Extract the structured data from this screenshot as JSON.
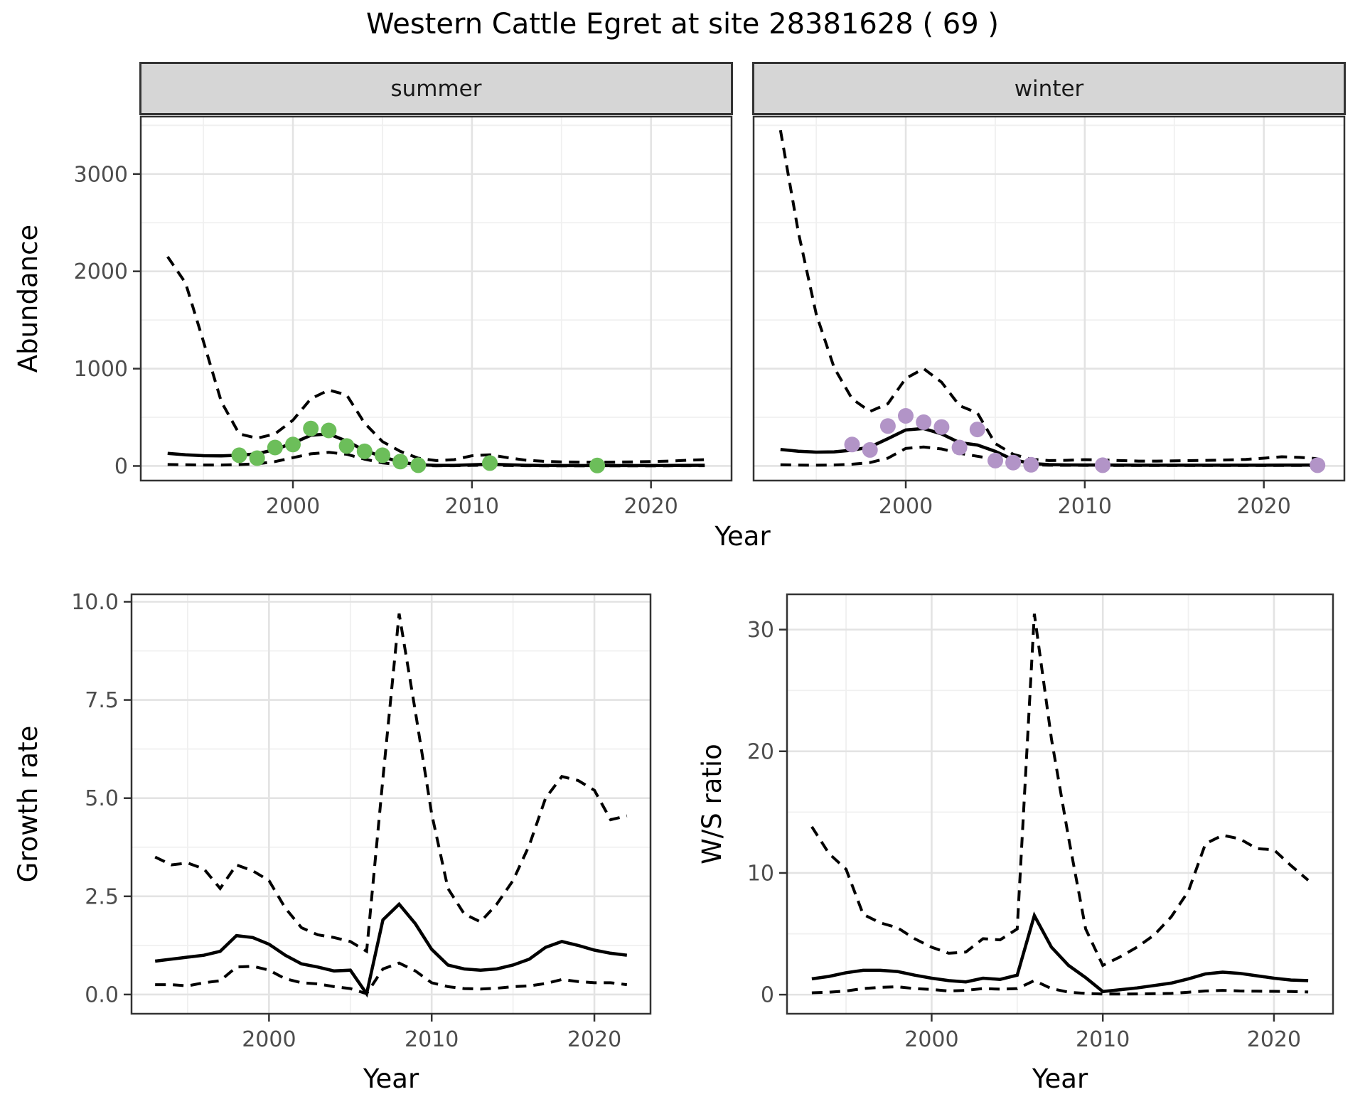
{
  "figure": {
    "title": "Western Cattle Egret at site 28381628 ( 69 )",
    "species": "Western Cattle Egret",
    "site_id": "28381628",
    "site_index": "69"
  },
  "style": {
    "summer_point_color": "#6CBE5A",
    "winter_point_color": "#B294C7",
    "line_color": "#000000",
    "strip_fill": "#D6D6D6",
    "panel_border": "#333333",
    "grid_major": "#E3E3E3",
    "grid_minor": "#F0F0F0",
    "tick_label_color": "#4D4D4D"
  },
  "chart_data": [
    {
      "id": "abundance-summer",
      "type": "line",
      "facet_label": "summer",
      "ylabel": "Abundance",
      "xlabel": "Year",
      "xlim": [
        1991.5,
        2024.5
      ],
      "ylim": [
        -150,
        3590
      ],
      "xticks": {
        "values": [
          2000,
          2010,
          2020
        ],
        "labels": [
          "2000",
          "2010",
          "2020"
        ]
      },
      "yticks": {
        "values": [
          0,
          1000,
          2000,
          3000
        ],
        "labels": [
          "0",
          "1000",
          "2000",
          "3000"
        ]
      },
      "xminor": [
        1995,
        2005,
        2015
      ],
      "yminor": [
        500,
        1500,
        2500,
        3500
      ],
      "series": [
        {
          "name": "upper-95ci",
          "style": "dashed",
          "years": [
            1993,
            1994,
            1995,
            1996,
            1997,
            1998,
            1999,
            2000,
            2001,
            2002,
            2003,
            2004,
            2005,
            2006,
            2007,
            2008,
            2009,
            2010,
            2011,
            2012,
            2013,
            2014,
            2015,
            2016,
            2017,
            2018,
            2019,
            2020,
            2021,
            2022,
            2023
          ],
          "values": [
            2150,
            1880,
            1280,
            660,
            330,
            285,
            330,
            470,
            690,
            780,
            730,
            440,
            250,
            150,
            80,
            55,
            65,
            105,
            115,
            85,
            60,
            48,
            42,
            40,
            38,
            40,
            42,
            45,
            50,
            58,
            65
          ]
        },
        {
          "name": "lower-95ci",
          "style": "dashed",
          "years": [
            1993,
            1994,
            1995,
            1996,
            1997,
            1998,
            1999,
            2000,
            2001,
            2002,
            2003,
            2004,
            2005,
            2006,
            2007,
            2008,
            2009,
            2010,
            2011,
            2012,
            2013,
            2014,
            2015,
            2016,
            2017,
            2018,
            2019,
            2020,
            2021,
            2022,
            2023
          ],
          "values": [
            15,
            12,
            10,
            10,
            14,
            22,
            45,
            85,
            125,
            140,
            120,
            70,
            32,
            12,
            4,
            2,
            3,
            6,
            8,
            5,
            3,
            2,
            2,
            2,
            2,
            2,
            2,
            2,
            2,
            3,
            3
          ]
        },
        {
          "name": "mean-fit",
          "style": "solid",
          "years": [
            1993,
            1994,
            1995,
            1996,
            1997,
            1998,
            1999,
            2000,
            2001,
            2002,
            2003,
            2004,
            2005,
            2006,
            2007,
            2008,
            2009,
            2010,
            2011,
            2012,
            2013,
            2014,
            2015,
            2016,
            2017,
            2018,
            2019,
            2020,
            2021,
            2022,
            2023
          ],
          "values": [
            130,
            115,
            106,
            104,
            110,
            125,
            170,
            235,
            315,
            330,
            255,
            160,
            95,
            40,
            12,
            6,
            6,
            12,
            18,
            12,
            7,
            5,
            4,
            4,
            4,
            4,
            4,
            4,
            5,
            6,
            7
          ]
        }
      ],
      "points": {
        "name": "observed-counts-summer",
        "color": "#6CBE5A",
        "years": [
          1997,
          1998,
          1999,
          2000,
          2001,
          2002,
          2003,
          2004,
          2005,
          2006,
          2007,
          2011,
          2017
        ],
        "values": [
          110,
          80,
          190,
          220,
          385,
          365,
          205,
          150,
          110,
          45,
          8,
          30,
          5
        ]
      }
    },
    {
      "id": "abundance-winter",
      "type": "line",
      "facet_label": "winter",
      "ylabel": "Abundance",
      "xlabel": "Year",
      "xlim": [
        1991.5,
        2024.5
      ],
      "ylim": [
        -150,
        3590
      ],
      "xticks": {
        "values": [
          2000,
          2010,
          2020
        ],
        "labels": [
          "2000",
          "2010",
          "2020"
        ]
      },
      "yticks": {
        "values": [
          0,
          1000,
          2000,
          3000
        ],
        "labels": [
          "0",
          "1000",
          "2000",
          "3000"
        ]
      },
      "xminor": [
        1995,
        2005,
        2015
      ],
      "yminor": [
        500,
        1500,
        2500,
        3500
      ],
      "series": [
        {
          "name": "upper-95ci",
          "style": "dashed",
          "years": [
            1993,
            1994,
            1995,
            1996,
            1997,
            1998,
            1999,
            2000,
            2001,
            2002,
            2003,
            2004,
            2005,
            2006,
            2007,
            2008,
            2009,
            2010,
            2011,
            2012,
            2013,
            2014,
            2015,
            2016,
            2017,
            2018,
            2019,
            2020,
            2021,
            2022,
            2023
          ],
          "values": [
            3450,
            2400,
            1560,
            1010,
            690,
            560,
            640,
            900,
            1000,
            860,
            620,
            545,
            230,
            120,
            70,
            55,
            58,
            65,
            62,
            55,
            50,
            50,
            52,
            55,
            58,
            62,
            68,
            80,
            95,
            88,
            75
          ]
        },
        {
          "name": "lower-95ci",
          "style": "dashed",
          "years": [
            1993,
            1994,
            1995,
            1996,
            1997,
            1998,
            1999,
            2000,
            2001,
            2002,
            2003,
            2004,
            2005,
            2006,
            2007,
            2008,
            2009,
            2010,
            2011,
            2012,
            2013,
            2014,
            2015,
            2016,
            2017,
            2018,
            2019,
            2020,
            2021,
            2022,
            2023
          ],
          "values": [
            12,
            9,
            8,
            10,
            18,
            35,
            80,
            180,
            195,
            175,
            130,
            100,
            70,
            35,
            12,
            8,
            7,
            6,
            6,
            5,
            5,
            5,
            5,
            5,
            5,
            5,
            5,
            5,
            5,
            5,
            5
          ]
        },
        {
          "name": "mean-fit",
          "style": "solid",
          "years": [
            1993,
            1994,
            1995,
            1996,
            1997,
            1998,
            1999,
            2000,
            2001,
            2002,
            2003,
            2004,
            2005,
            2006,
            2007,
            2008,
            2009,
            2010,
            2011,
            2012,
            2013,
            2014,
            2015,
            2016,
            2017,
            2018,
            2019,
            2020,
            2021,
            2022,
            2023
          ],
          "values": [
            170,
            152,
            142,
            145,
            162,
            195,
            280,
            370,
            385,
            330,
            240,
            215,
            150,
            65,
            25,
            14,
            11,
            10,
            10,
            9,
            8,
            8,
            8,
            8,
            8,
            8,
            8,
            8,
            9,
            9,
            10
          ]
        }
      ],
      "points": {
        "name": "observed-counts-winter",
        "color": "#B294C7",
        "years": [
          1997,
          1998,
          1999,
          2000,
          2001,
          2002,
          2003,
          2004,
          2005,
          2006,
          2007,
          2011,
          2023
        ],
        "values": [
          220,
          165,
          410,
          515,
          450,
          400,
          190,
          375,
          55,
          35,
          12,
          8,
          8
        ]
      }
    },
    {
      "id": "growth-rate",
      "type": "line",
      "facet_label": "",
      "ylabel": "Growth rate",
      "xlabel": "Year",
      "xlim": [
        1991.55,
        2023.45
      ],
      "ylim": [
        -0.49,
        10.19
      ],
      "xticks": {
        "values": [
          2000,
          2010,
          2020
        ],
        "labels": [
          "2000",
          "2010",
          "2020"
        ]
      },
      "yticks": {
        "values": [
          0.0,
          2.5,
          5.0,
          7.5,
          10.0
        ],
        "labels": [
          "0.0",
          "2.5",
          "5.0",
          "7.5",
          "10.0"
        ]
      },
      "xminor": [
        1995,
        2005,
        2015
      ],
      "yminor": [
        1.25,
        3.75,
        6.25,
        8.75
      ],
      "series": [
        {
          "name": "upper-95ci",
          "style": "dashed",
          "years": [
            1993,
            1994,
            1995,
            1996,
            1997,
            1998,
            1999,
            2000,
            2001,
            2002,
            2003,
            2004,
            2005,
            2006,
            2007,
            2008,
            2009,
            2010,
            2011,
            2012,
            2013,
            2014,
            2015,
            2016,
            2017,
            2018,
            2019,
            2020,
            2021,
            2022
          ],
          "values": [
            3.5,
            3.3,
            3.35,
            3.2,
            2.7,
            3.3,
            3.15,
            2.9,
            2.2,
            1.7,
            1.52,
            1.45,
            1.35,
            1.1,
            5.5,
            9.7,
            7.2,
            4.6,
            2.7,
            2.05,
            1.85,
            2.3,
            2.9,
            3.8,
            5.0,
            5.55,
            5.45,
            5.2,
            4.45,
            4.55
          ]
        },
        {
          "name": "lower-95ci",
          "style": "dashed",
          "years": [
            1993,
            1994,
            1995,
            1996,
            1997,
            1998,
            1999,
            2000,
            2001,
            2002,
            2003,
            2004,
            2005,
            2006,
            2007,
            2008,
            2009,
            2010,
            2011,
            2012,
            2013,
            2014,
            2015,
            2016,
            2017,
            2018,
            2019,
            2020,
            2021,
            2022
          ],
          "values": [
            0.25,
            0.25,
            0.22,
            0.3,
            0.35,
            0.7,
            0.72,
            0.62,
            0.4,
            0.3,
            0.27,
            0.2,
            0.15,
            0.02,
            0.65,
            0.8,
            0.6,
            0.3,
            0.2,
            0.15,
            0.14,
            0.16,
            0.2,
            0.22,
            0.28,
            0.38,
            0.33,
            0.3,
            0.3,
            0.25
          ]
        },
        {
          "name": "mean-fit",
          "style": "solid",
          "years": [
            1993,
            1994,
            1995,
            1996,
            1997,
            1998,
            1999,
            2000,
            2001,
            2002,
            2003,
            2004,
            2005,
            2006,
            2007,
            2008,
            2009,
            2010,
            2011,
            2012,
            2013,
            2014,
            2015,
            2016,
            2017,
            2018,
            2019,
            2020,
            2021,
            2022
          ],
          "values": [
            0.85,
            0.9,
            0.95,
            1.0,
            1.1,
            1.5,
            1.45,
            1.28,
            1.0,
            0.78,
            0.7,
            0.6,
            0.62,
            0.02,
            1.9,
            2.3,
            1.8,
            1.15,
            0.75,
            0.65,
            0.62,
            0.65,
            0.75,
            0.9,
            1.2,
            1.35,
            1.25,
            1.13,
            1.05,
            1.0
          ]
        }
      ],
      "points": null
    },
    {
      "id": "ws-ratio",
      "type": "line",
      "facet_label": "",
      "ylabel": "W/S ratio",
      "xlabel": "Year",
      "xlim": [
        1991.55,
        2023.45
      ],
      "ylim": [
        -1.57,
        32.9
      ],
      "xticks": {
        "values": [
          2000,
          2010,
          2020
        ],
        "labels": [
          "2000",
          "2010",
          "2020"
        ]
      },
      "yticks": {
        "values": [
          0,
          10,
          20,
          30
        ],
        "labels": [
          "0",
          "10",
          "20",
          "30"
        ]
      },
      "xminor": [
        1995,
        2005,
        2015
      ],
      "yminor": [
        5,
        15,
        25
      ],
      "series": [
        {
          "name": "upper-95ci",
          "style": "dashed",
          "years": [
            1993,
            1994,
            1995,
            1996,
            1997,
            1998,
            1999,
            2000,
            2001,
            2002,
            2003,
            2004,
            2005,
            2006,
            2007,
            2008,
            2009,
            2010,
            2011,
            2012,
            2013,
            2014,
            2015,
            2016,
            2017,
            2018,
            2019,
            2020,
            2021,
            2022
          ],
          "values": [
            13.8,
            11.6,
            10.3,
            6.6,
            5.9,
            5.5,
            4.6,
            3.9,
            3.4,
            3.5,
            4.6,
            4.5,
            5.4,
            31.3,
            21.0,
            12.9,
            5.4,
            2.4,
            3.1,
            3.9,
            4.9,
            6.4,
            8.5,
            12.4,
            13.1,
            12.8,
            12.0,
            11.9,
            10.6,
            9.4
          ]
        },
        {
          "name": "lower-95ci",
          "style": "dashed",
          "years": [
            1993,
            1994,
            1995,
            1996,
            1997,
            1998,
            1999,
            2000,
            2001,
            2002,
            2003,
            2004,
            2005,
            2006,
            2007,
            2008,
            2009,
            2010,
            2011,
            2012,
            2013,
            2014,
            2015,
            2016,
            2017,
            2018,
            2019,
            2020,
            2021,
            2022
          ],
          "values": [
            0.15,
            0.2,
            0.3,
            0.5,
            0.6,
            0.65,
            0.5,
            0.42,
            0.3,
            0.35,
            0.5,
            0.45,
            0.5,
            1.15,
            0.5,
            0.2,
            0.1,
            0.05,
            0.05,
            0.06,
            0.08,
            0.1,
            0.2,
            0.3,
            0.35,
            0.3,
            0.28,
            0.27,
            0.25,
            0.22
          ]
        },
        {
          "name": "mean-fit",
          "style": "solid",
          "years": [
            1993,
            1994,
            1995,
            1996,
            1997,
            1998,
            1999,
            2000,
            2001,
            2002,
            2003,
            2004,
            2005,
            2006,
            2007,
            2008,
            2009,
            2010,
            2011,
            2012,
            2013,
            2014,
            2015,
            2016,
            2017,
            2018,
            2019,
            2020,
            2021,
            2022
          ],
          "values": [
            1.3,
            1.5,
            1.8,
            2.0,
            2.0,
            1.9,
            1.6,
            1.35,
            1.15,
            1.05,
            1.35,
            1.25,
            1.6,
            6.5,
            3.9,
            2.4,
            1.4,
            0.25,
            0.4,
            0.55,
            0.75,
            0.95,
            1.3,
            1.7,
            1.85,
            1.75,
            1.55,
            1.35,
            1.2,
            1.15
          ]
        }
      ],
      "points": null
    }
  ]
}
